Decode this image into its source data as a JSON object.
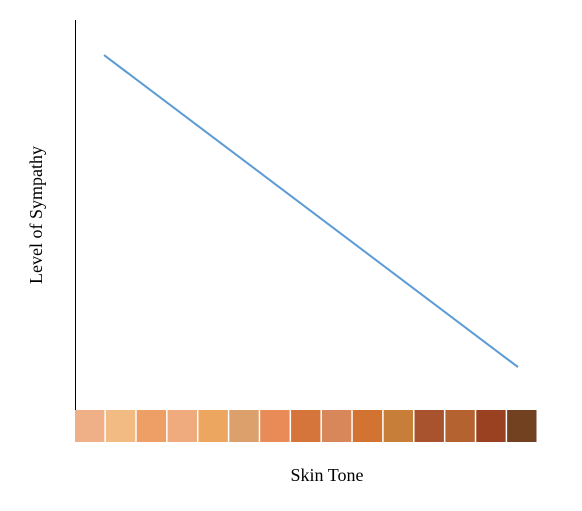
{
  "chart_data": {
    "type": "line",
    "title": "",
    "xlabel": "Skin Tone",
    "ylabel": "Level of Sympathy",
    "grid": false,
    "legend": "none",
    "x": [
      0,
      1
    ],
    "ylim": [
      0,
      1
    ],
    "series": [
      {
        "values": [
          0.91,
          0.11
        ],
        "color": "#5b9bd5"
      }
    ],
    "skin_tone_swatches": [
      "#efb087",
      "#f2bb84",
      "#ed9f66",
      "#efaa7e",
      "#eda65f",
      "#dca06d",
      "#e88b57",
      "#d5743b",
      "#d7875a",
      "#d27331",
      "#c67e38",
      "#a9532e",
      "#b4622f",
      "#9a4121",
      "#724120"
    ]
  }
}
